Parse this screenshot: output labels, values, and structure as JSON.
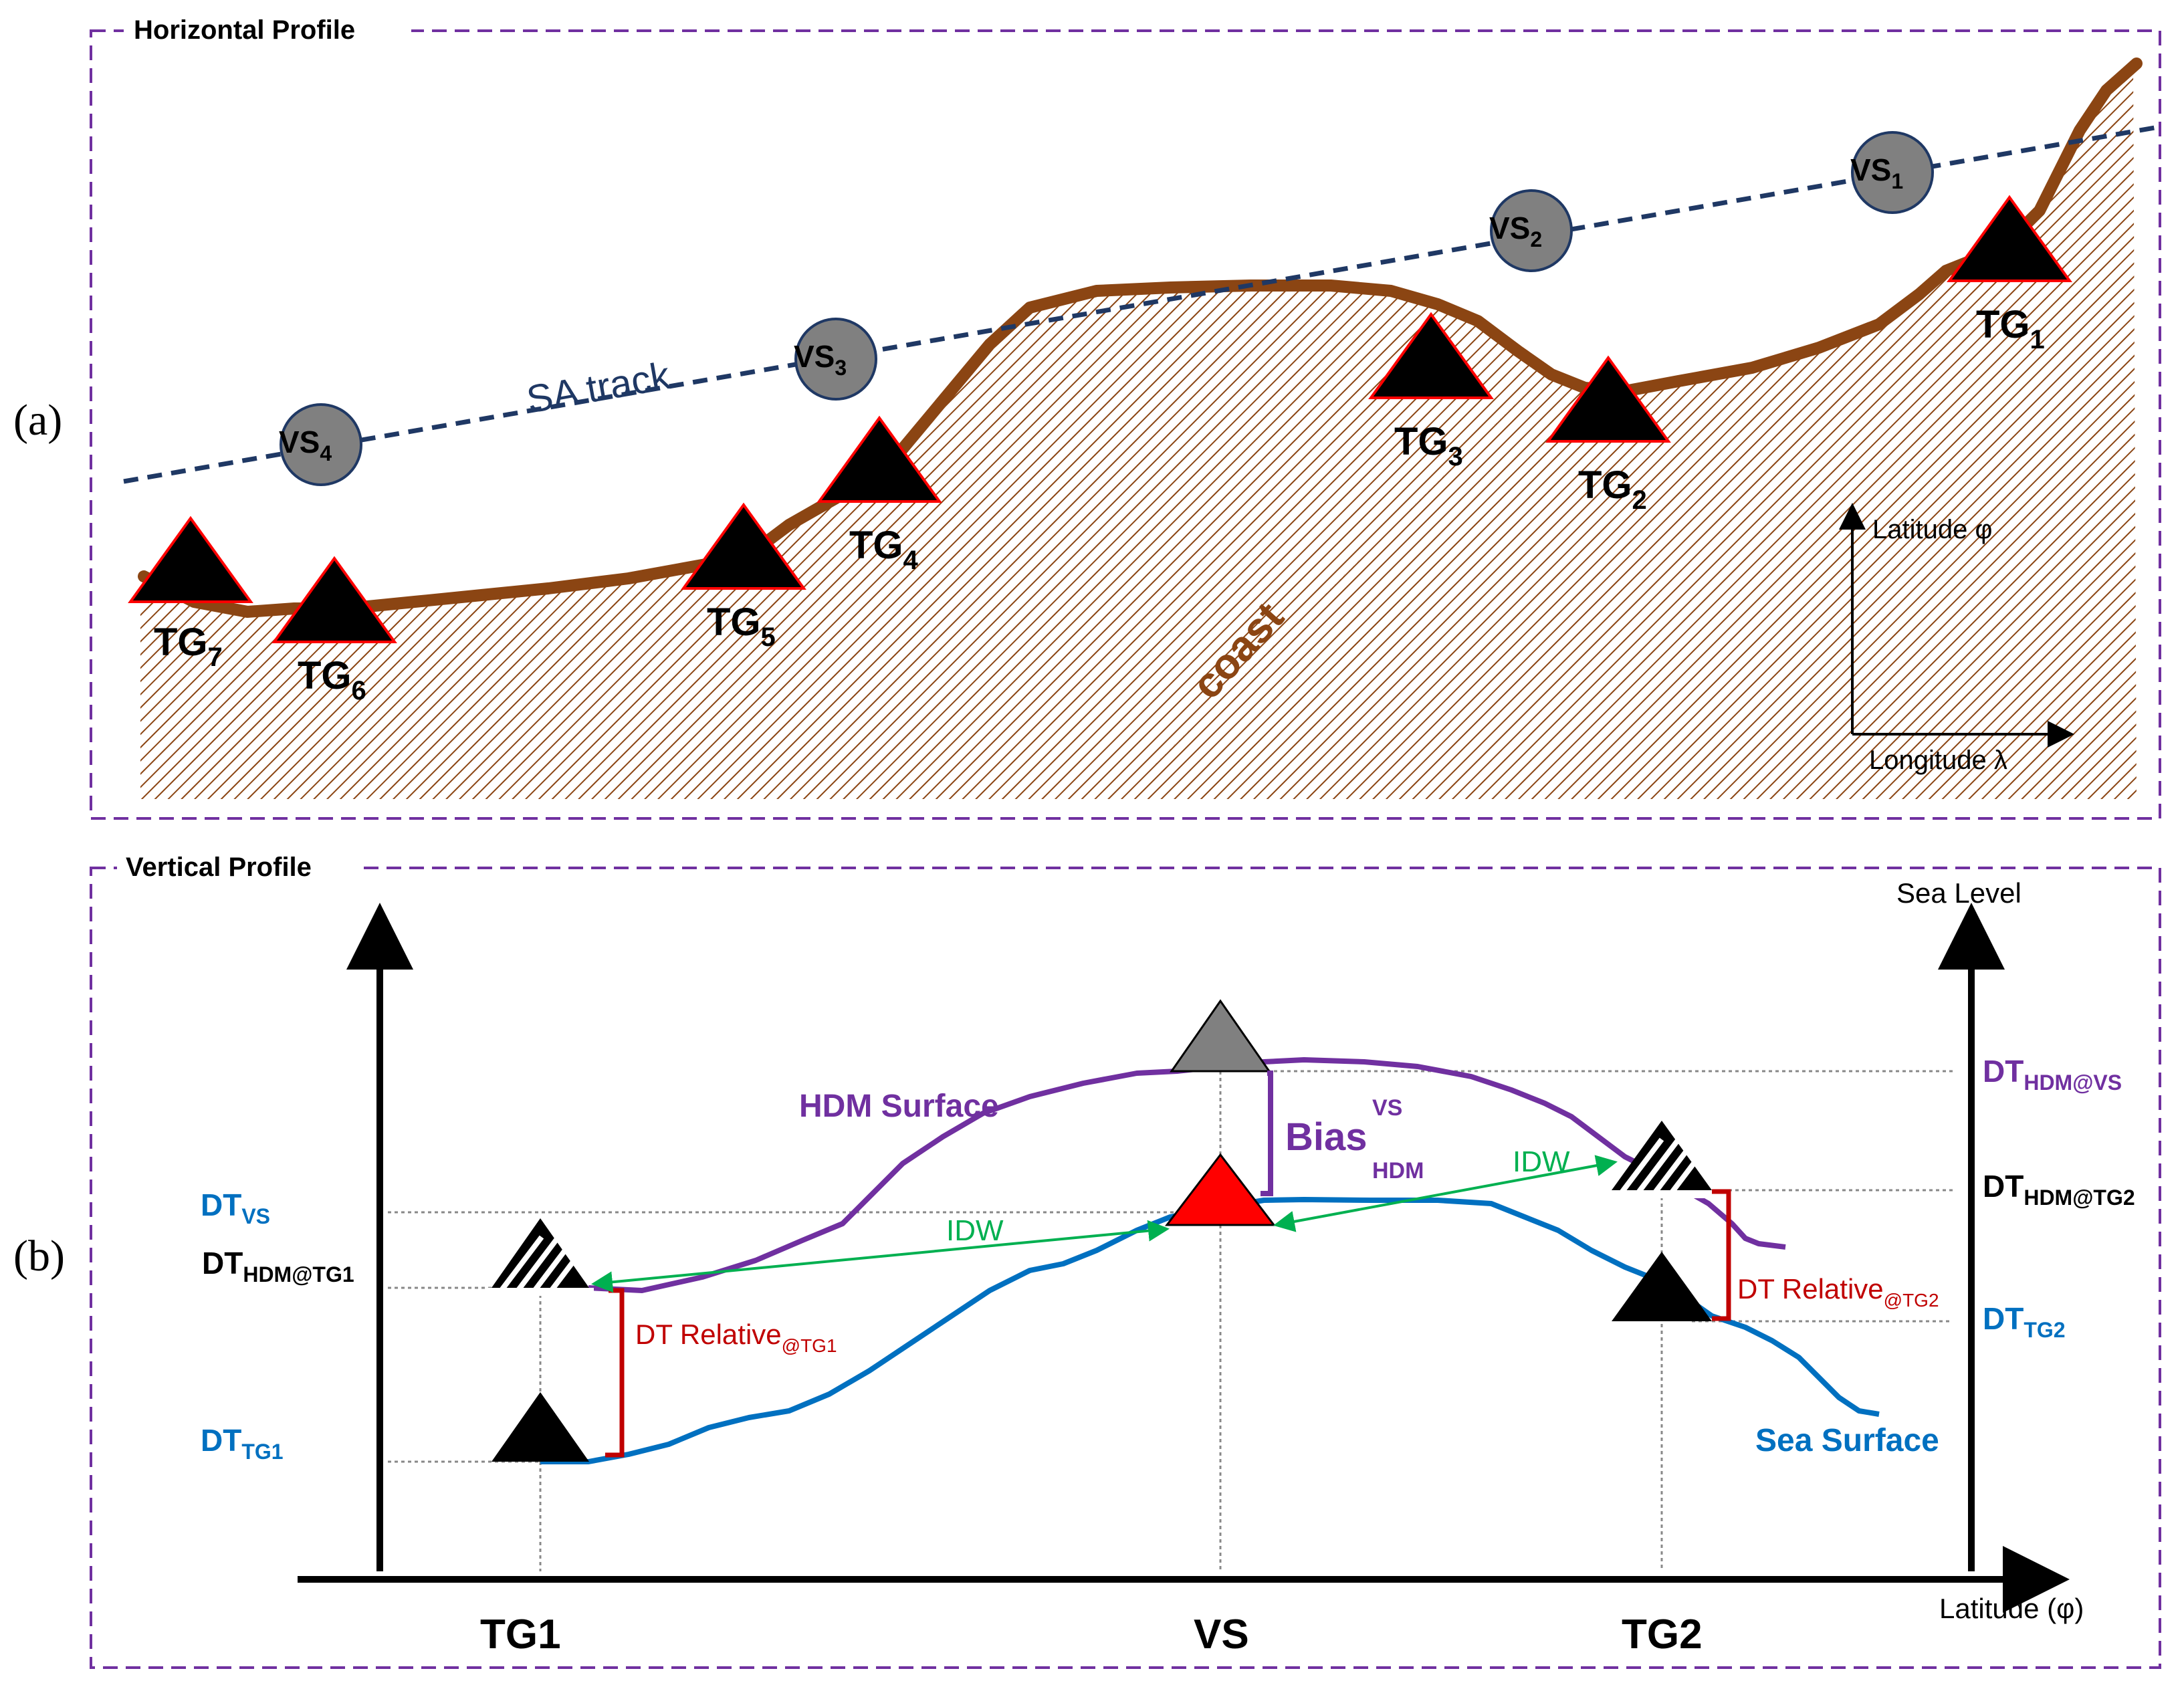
{
  "panel_a": {
    "letter": "(a)",
    "title": "Horizontal Profile",
    "sa_track_label": "SA track",
    "coast_label": "coast",
    "axis_lat": "Latitude φ",
    "axis_lon": "Longitude λ",
    "vs": [
      {
        "base": "VS",
        "sub": "1"
      },
      {
        "base": "VS",
        "sub": "2"
      },
      {
        "base": "VS",
        "sub": "3"
      },
      {
        "base": "VS",
        "sub": "4"
      }
    ],
    "tg": [
      {
        "base": "TG",
        "sub": "1"
      },
      {
        "base": "TG",
        "sub": "2"
      },
      {
        "base": "TG",
        "sub": "3"
      },
      {
        "base": "TG",
        "sub": "4"
      },
      {
        "base": "TG",
        "sub": "5"
      },
      {
        "base": "TG",
        "sub": "6"
      },
      {
        "base": "TG",
        "sub": "7"
      }
    ]
  },
  "panel_b": {
    "letter": "(b)",
    "title": "Vertical Profile",
    "sea_level": "Sea Level",
    "latitude_axis": "Latitude (φ)",
    "hdm_surface": "HDM Surface",
    "sea_surface": "Sea Surface",
    "bias": {
      "base": "Bias",
      "sup": "VS",
      "sub": "HDM"
    },
    "idw_left": "IDW",
    "idw_right": "IDW",
    "dt_rel_tg1": {
      "base": "DT Relative",
      "sub": "@TG1"
    },
    "dt_rel_tg2": {
      "base": "DT Relative",
      "sub": "@TG2"
    },
    "dt_vs": {
      "base": "DT",
      "sub": "VS"
    },
    "dt_hdm_tg1": {
      "base": "DT",
      "sub": "HDM@TG1"
    },
    "dt_tg1": {
      "base": "DT",
      "sub": "TG1"
    },
    "dt_hdm_vs": {
      "base": "DT",
      "sub": "HDM@VS"
    },
    "dt_hdm_tg2": {
      "base": "DT",
      "sub": "HDM@TG2"
    },
    "dt_tg2": {
      "base": "DT",
      "sub": "TG2"
    },
    "x_labels": {
      "tg1": "TG1",
      "vs": "VS",
      "tg2": "TG2"
    }
  },
  "colors": {
    "frame": "#7030a0",
    "coast": "#8b4513",
    "track": "#1f3864",
    "vs_fill": "#808080",
    "triangle_edge": "#ff0000",
    "hdm": "#7030a0",
    "sea": "#0070c0",
    "relative": "#c00000",
    "idw": "#00b050",
    "dt_blue": "#0070c0",
    "dt_purple": "#7030a0"
  }
}
